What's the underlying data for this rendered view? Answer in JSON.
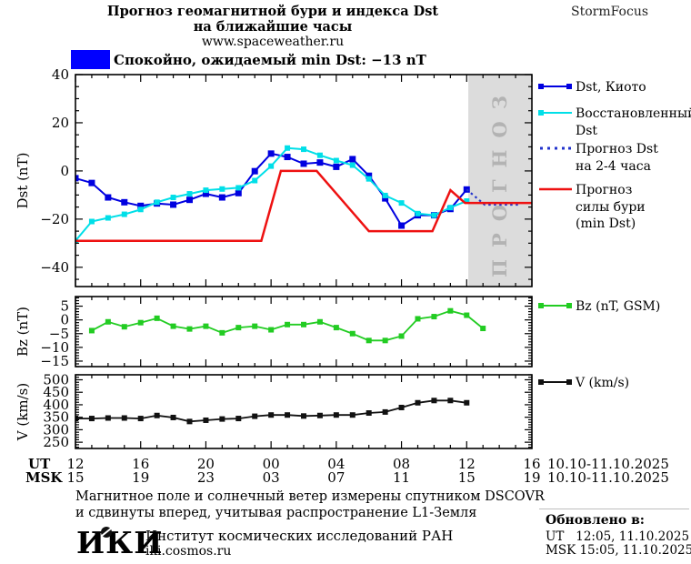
{
  "header": {
    "title_line1": "Прогноз геомагнитной бури и индекса Dst",
    "title_line2": "на ближайшие часы",
    "website": "www.spaceweather.ru",
    "brand": "StormFocus"
  },
  "status": {
    "text": "Спокойно, ожидаемый min Dst: −13 nT"
  },
  "colors": {
    "dst_kyoto": "#0000e0",
    "restored": "#00dfe8",
    "forecast_dst": "#2233cc",
    "storm": "#ee1111",
    "bz": "#22cc22",
    "v": "#111111",
    "status_box": "#0000ff",
    "axis": "#000000",
    "forecast_region": "#dcdcdc",
    "forecast_region_text": "#b3b3b3"
  },
  "forecast_region_label": "ПРОГНОЗ",
  "legend": {
    "dst_kyoto": "Dst, Киото",
    "restored_line1": "Восстановленный",
    "restored_line2": "Dst",
    "forecast_dst_line1": "Прогноз Dst",
    "forecast_dst_line2": "на 2-4 часа",
    "storm_line1": "Прогноз",
    "storm_line2": "силы бури",
    "storm_line3": "(min Dst)",
    "bz": "Bz (nT, GSM)",
    "v": "V (km/s)"
  },
  "axis": {
    "ut_label": "UT",
    "msk_label": "MSK",
    "hour_ticks": [
      0,
      4,
      8,
      12,
      16,
      20,
      24,
      28
    ],
    "ut_hours": [
      "12",
      "16",
      "20",
      "00",
      "04",
      "08",
      "12",
      "16"
    ],
    "msk_hours": [
      "15",
      "19",
      "23",
      "03",
      "07",
      "11",
      "15",
      "19"
    ],
    "ut_date": "10.10-11.10.2025",
    "msk_date": "10.10-11.10.2025"
  },
  "chart_data": [
    {
      "type": "line",
      "panel": "dst",
      "ylabel": "Dst (nT)",
      "ylim": [
        -48,
        40
      ],
      "yticks": [
        40,
        20,
        0,
        -20,
        -40
      ],
      "minor_step": 5,
      "forecast_region_start_hour": 24.1,
      "series": [
        {
          "name": "Dst, Киото",
          "color_key": "dst_kyoto",
          "marker": 7,
          "width": 2,
          "start_hour": 0,
          "step_hour": 1,
          "values": [
            -3,
            -5,
            -11,
            -13,
            -14.5,
            -13.5,
            -14,
            -12,
            -9.5,
            -11,
            -9.2,
            -0.1,
            7.2,
            5.8,
            3,
            3.5,
            1.7,
            4.9,
            -2,
            -11.4,
            -22.7,
            -18.4,
            -18.4,
            -15.8,
            -7.7
          ]
        },
        {
          "name": "Восстановленный Dst",
          "color_key": "restored",
          "marker": 6,
          "width": 2,
          "start_hour": 0,
          "step_hour": 1,
          "values": [
            -29,
            -21,
            -19.5,
            -18,
            -16,
            -13,
            -11,
            -9.5,
            -8,
            -7.5,
            -7,
            -4,
            2,
            9.5,
            9,
            6.5,
            4.3,
            2.4,
            -3.3,
            -10.2,
            -13.3,
            -17.7,
            -18.4,
            -15.2,
            -12.5
          ]
        },
        {
          "name": "Прогноз Dst на 2-4 часа",
          "color_key": "forecast_dst",
          "dotted": true,
          "width": 2.2,
          "points": [
            [
              24,
              -7.7
            ],
            [
              25.1,
              -14
            ],
            [
              27.3,
              -14
            ]
          ]
        },
        {
          "name": "Прогноз силы бури (min Dst)",
          "color_key": "storm",
          "width": 2.5,
          "points": [
            [
              0,
              -29
            ],
            [
              11.4,
              -29
            ],
            [
              12.6,
              0
            ],
            [
              14.8,
              0
            ],
            [
              18,
              -25
            ],
            [
              21.9,
              -25
            ],
            [
              23,
              -8
            ],
            [
              23.9,
              -13.3
            ],
            [
              28,
              -13.3
            ]
          ]
        }
      ]
    },
    {
      "type": "line",
      "panel": "bz",
      "ylabel": "Bz (nT)",
      "ylim": [
        -17,
        8.5
      ],
      "yticks": [
        5,
        0,
        -5,
        -10,
        -15
      ],
      "minor_step": 1,
      "series": [
        {
          "name": "Bz (nT, GSM)",
          "color_key": "bz",
          "marker": 6,
          "width": 1.8,
          "start_hour": 1,
          "step_hour": 1,
          "values": [
            -3.9,
            -0.7,
            -2.5,
            -1,
            0.6,
            -2.3,
            -3.3,
            -2.3,
            -4.7,
            -2.8,
            -2.3,
            -3.6,
            -1.7,
            -1.7,
            -0.7,
            -2.8,
            -5,
            -7.5,
            -7.5,
            -5.9,
            0.4,
            1.2,
            3.3,
            1.7,
            -3.1
          ]
        }
      ]
    },
    {
      "type": "line",
      "panel": "v",
      "ylabel": "V (km/s)",
      "ylim": [
        225,
        520
      ],
      "yticks": [
        500,
        450,
        400,
        350,
        300,
        250
      ],
      "minor_step": 10,
      "series": [
        {
          "name": "V (km/s)",
          "color_key": "v",
          "marker": 6,
          "width": 1.8,
          "start_hour": 0,
          "step_hour": 1,
          "values": [
            345,
            345,
            347,
            347,
            345,
            357,
            349,
            333,
            338,
            343,
            345,
            354,
            359,
            359,
            355,
            357,
            359,
            359,
            367,
            371,
            389,
            408,
            417,
            417,
            408
          ]
        }
      ]
    }
  ],
  "footer": {
    "note_line1": "Магнитное поле и солнечный ветер измерены спутником DSCOVR",
    "note_line2": "и сдвинуты вперед, учитывая распространение L1-Земля",
    "logo_text": "ИКИ",
    "institute": "Институт космических исследований РАН",
    "institute_site": "iki.cosmos.ru",
    "updated_title": "Обновлено в:",
    "updated_ut": "UT   12:05, 11.10.2025",
    "updated_msk": "MSK 15:05, 11.10.2025"
  }
}
